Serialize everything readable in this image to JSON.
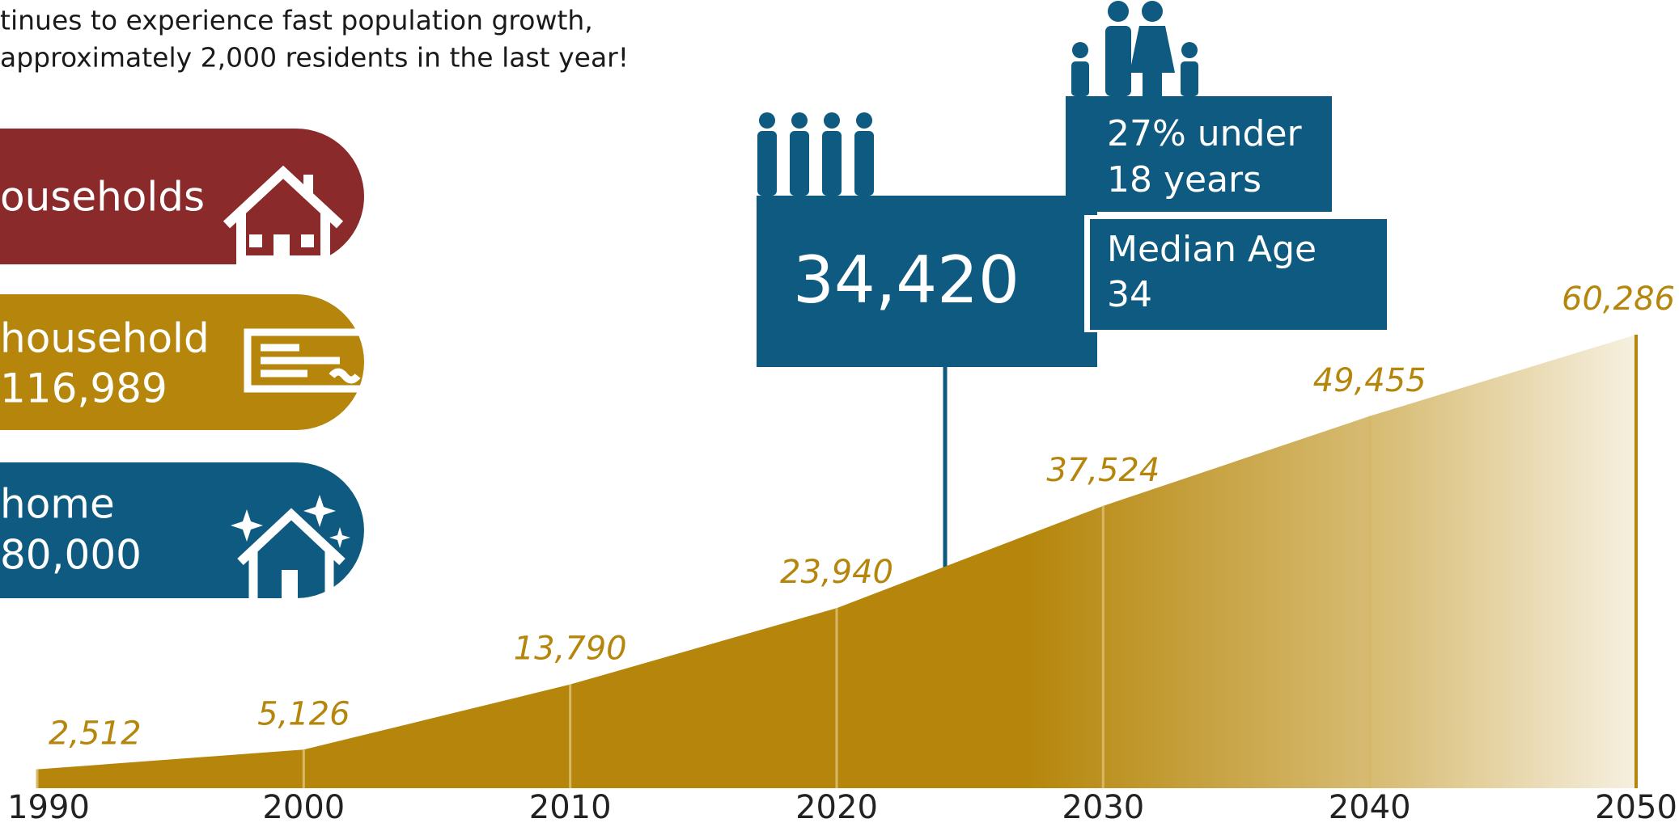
{
  "header": {
    "lines": [
      "tinues to experience fast population growth,",
      "approximately 2,000 residents in the last year!"
    ]
  },
  "cards": [
    {
      "lines": [
        "ouseholds"
      ]
    },
    {
      "lines": [
        "household",
        "116,989"
      ]
    },
    {
      "lines": [
        "home",
        "80,000"
      ]
    }
  ],
  "callouts": {
    "population": "34,420",
    "youth": [
      "27% under",
      "18 years"
    ],
    "median": [
      "Median Age",
      "34"
    ]
  },
  "chart_data": {
    "type": "area",
    "x": [
      1990,
      2000,
      2010,
      2020,
      2030,
      2040,
      2050
    ],
    "xticks": [
      1990,
      2000,
      2010,
      2020,
      2030,
      2040,
      2050
    ],
    "values": [
      2512,
      5126,
      13790,
      23940,
      37524,
      49455,
      60286
    ],
    "value_labels": [
      "2,512",
      "5,126",
      "13,790",
      "23,940",
      "37,524",
      "49,455",
      "60,286"
    ],
    "color": "#b5860b"
  }
}
